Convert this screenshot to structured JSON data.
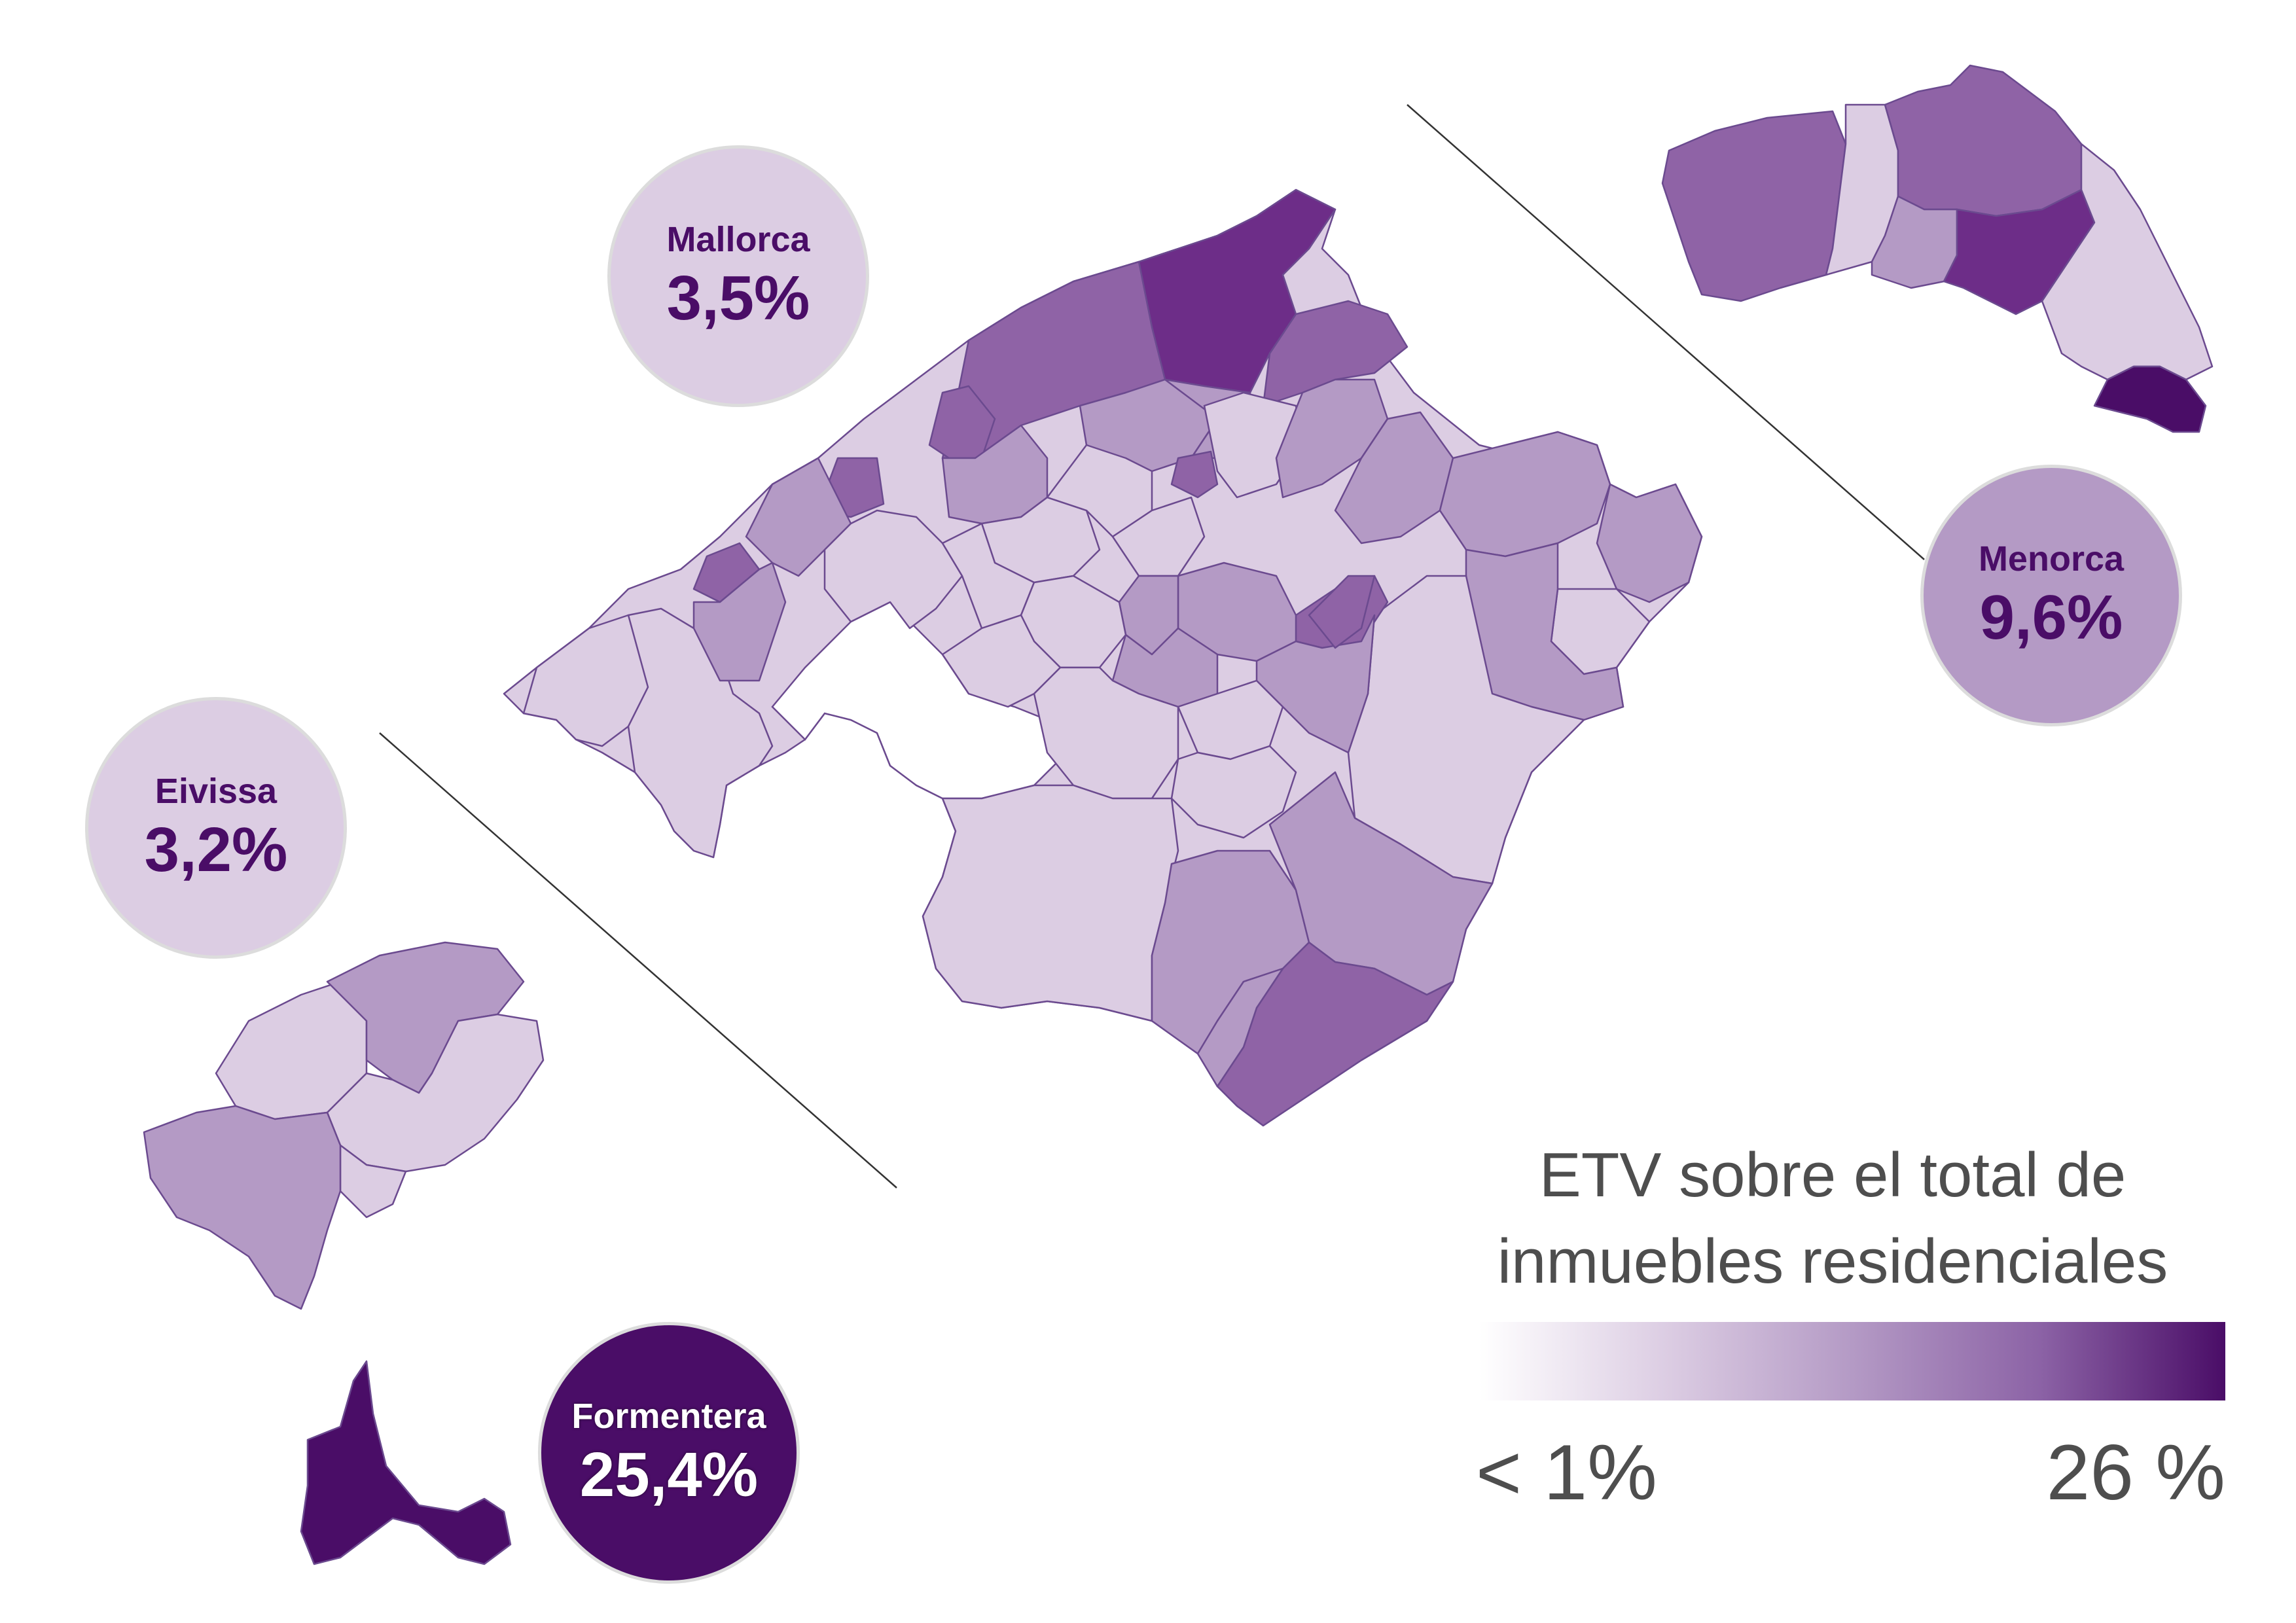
{
  "colors": {
    "very_light": "#dccde3",
    "light": "#b49ac5",
    "medium": "#8f63a6",
    "strong": "#6d2d88",
    "darkest": "#4a0d67",
    "border": "#6b4a8f",
    "text_gray": "#4e4e4e"
  },
  "islands": [
    {
      "name": "Mallorca",
      "value": "3,5%"
    },
    {
      "name": "Menorca",
      "value": "9,6%"
    },
    {
      "name": "Eivissa",
      "value": "3,2%"
    },
    {
      "name": "Formentera",
      "value": "25,4%"
    }
  ],
  "legend": {
    "title": "ETV sobre el total de inmuebles residenciales",
    "min_label": "< 1%",
    "max_label": "26 %",
    "gradient": [
      "#ffffff",
      "#dccde3",
      "#b49ac5",
      "#8c63a6",
      "#4a0d67"
    ]
  }
}
